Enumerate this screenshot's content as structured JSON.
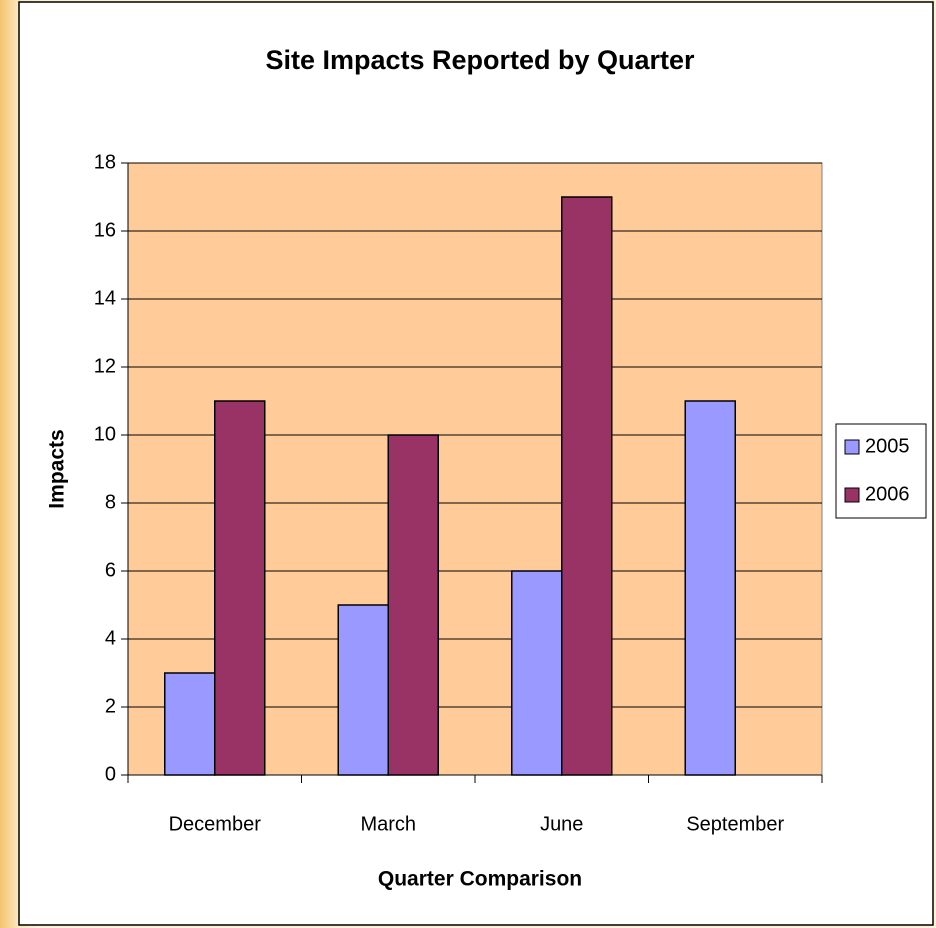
{
  "chart_data": {
    "type": "bar",
    "title": "Site Impacts Reported by Quarter",
    "x_label": "Quarter Comparison",
    "y_label": "Impacts",
    "categories": [
      "December",
      "March",
      "June",
      "September"
    ],
    "series": [
      {
        "name": "2005",
        "color": "#9999ff",
        "values": [
          3,
          5,
          6,
          11
        ]
      },
      {
        "name": "2006",
        "color": "#993366",
        "values": [
          11,
          10,
          17,
          null
        ]
      }
    ],
    "ylim": [
      0,
      18
    ],
    "yticks": [
      0,
      2,
      4,
      6,
      8,
      10,
      12,
      14,
      16,
      18
    ],
    "grid": true,
    "legend": "right",
    "plot_background": "#ffcc99"
  }
}
